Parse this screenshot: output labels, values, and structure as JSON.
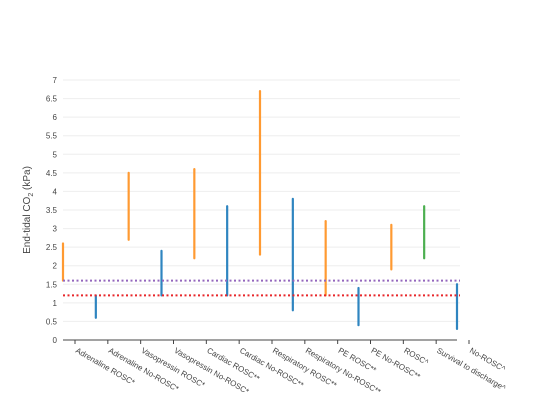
{
  "chart_data": {
    "type": "range",
    "ylabel_main": "End-tidal CO",
    "ylabel_sub": "2",
    "ylabel_unit": " (kPa)",
    "ylim": [
      0,
      7
    ],
    "yticks": [
      "0",
      "0.5",
      "1",
      "1.5",
      "2",
      "2.5",
      "3",
      "3.5",
      "4",
      "4.5",
      "5",
      "5.5",
      "6",
      "6.5",
      "7"
    ],
    "grid": true,
    "colors": {
      "orange": "#ff9a32",
      "blue": "#2f85c0",
      "green": "#4caf50",
      "red_line": "#e8262a",
      "purple_line": "#9467bd"
    },
    "reference_lines": [
      {
        "value": 1.6,
        "color": "#9467bd",
        "style": "dotted"
      },
      {
        "value": 1.2,
        "color": "#e8262a",
        "style": "dotted"
      }
    ],
    "categories": [
      "Adrenaline ROSC*",
      "Adrenaline No-ROSC*",
      "Vasopressin ROSC*",
      "Vasopressin No-ROSC*",
      "Cardiac ROSC**",
      "Cardiac No-ROSC**",
      "Respiratory ROSC**",
      "Respiratory No-ROSC**",
      "PE ROSC**",
      "PE No-ROSC**",
      "ROSC^",
      "Survival to discharge^",
      "No-ROSC^"
    ],
    "series": [
      {
        "low": 1.6,
        "high": 2.6,
        "color": "#ff9a32"
      },
      {
        "low": 0.6,
        "high": 1.2,
        "color": "#2f85c0"
      },
      {
        "low": 2.7,
        "high": 4.5,
        "color": "#ff9a32"
      },
      {
        "low": 1.2,
        "high": 2.4,
        "color": "#2f85c0"
      },
      {
        "low": 2.2,
        "high": 4.6,
        "color": "#ff9a32"
      },
      {
        "low": 1.2,
        "high": 3.6,
        "color": "#2f85c0"
      },
      {
        "low": 2.3,
        "high": 6.7,
        "color": "#ff9a32"
      },
      {
        "low": 0.8,
        "high": 3.8,
        "color": "#2f85c0"
      },
      {
        "low": 1.2,
        "high": 3.2,
        "color": "#ff9a32"
      },
      {
        "low": 0.4,
        "high": 1.4,
        "color": "#2f85c0"
      },
      {
        "low": 1.9,
        "high": 3.1,
        "color": "#ff9a32"
      },
      {
        "low": 2.2,
        "high": 3.6,
        "color": "#4caf50"
      },
      {
        "low": 0.3,
        "high": 1.5,
        "color": "#2f85c0"
      }
    ]
  }
}
